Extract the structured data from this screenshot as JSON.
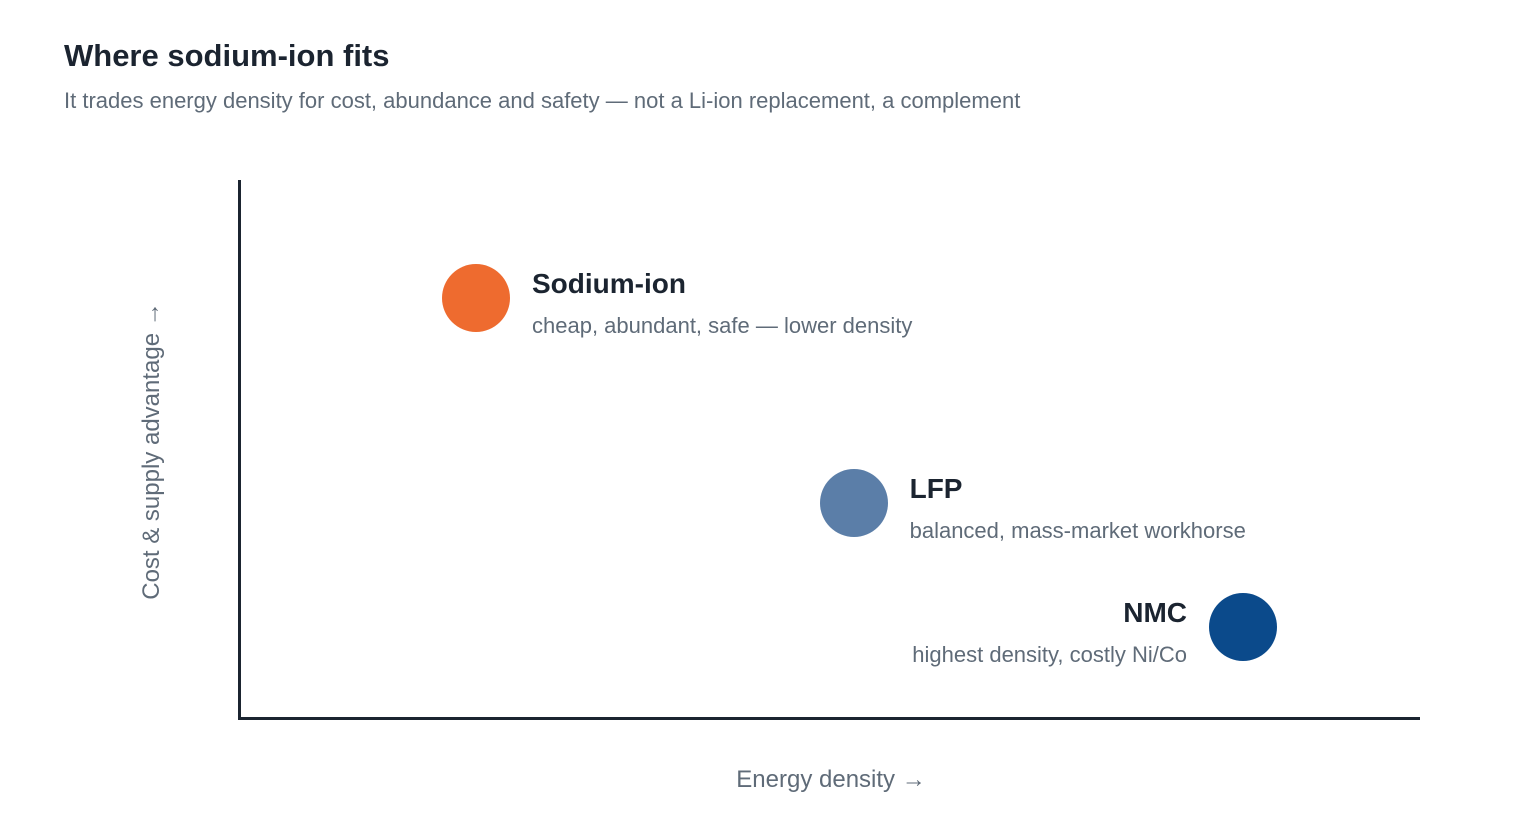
{
  "title": "Where sodium-ion fits",
  "subtitle": "It trades energy density for cost, abundance and safety — not a Li-ion replacement, a complement",
  "chart_data": {
    "type": "scatter",
    "xlabel": "Energy density →",
    "ylabel": "Cost & supply advantage →",
    "xlim": [
      0,
      100
    ],
    "ylim": [
      0,
      100
    ],
    "grid": false,
    "points": [
      {
        "name": "Sodium-ion",
        "description": "cheap, abundant, safe — lower density",
        "x": 20,
        "y": 78,
        "color": "#ee6b2f",
        "label_side": "right"
      },
      {
        "name": "LFP",
        "description": "balanced, mass-market workhorse",
        "x": 52,
        "y": 40,
        "color": "#5b7ea8",
        "label_side": "right"
      },
      {
        "name": "NMC",
        "description": "highest density, costly Ni/Co",
        "x": 85,
        "y": 17,
        "color": "#0b4a8b",
        "label_side": "left"
      }
    ]
  }
}
